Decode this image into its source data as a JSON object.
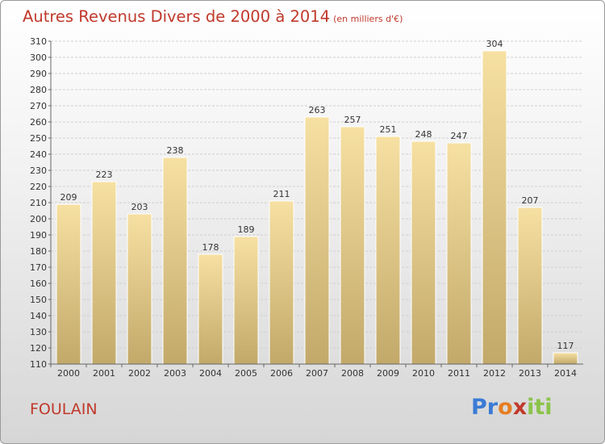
{
  "title": "Autres Revenus Divers de 2000 à 2014",
  "subtitle": "(en milliers d'€)",
  "commune": "FOULAIN",
  "logo": {
    "letters": [
      "P",
      "r",
      "o",
      "x",
      "i",
      "t",
      "i"
    ],
    "colors": [
      "#3a7bd5",
      "#3a7bd5",
      "#e67e22",
      "#c0392b",
      "#8bc34a",
      "#8bc34a",
      "#8bc34a"
    ]
  },
  "colors": {
    "title": "#c0392b",
    "bar_light": "#f4dc9a",
    "bar_dark": "#c8b070",
    "grid": "#cfcfcf"
  },
  "chart_data": {
    "type": "bar",
    "categories": [
      "2000",
      "2001",
      "2002",
      "2003",
      "2004",
      "2005",
      "2006",
      "2007",
      "2008",
      "2009",
      "2010",
      "2011",
      "2012",
      "2013",
      "2014"
    ],
    "values": [
      209,
      223,
      203,
      238,
      178,
      189,
      211,
      263,
      257,
      251,
      248,
      247,
      304,
      207,
      117
    ],
    "ylim": [
      110,
      310
    ],
    "yticks": [
      110,
      120,
      130,
      140,
      150,
      160,
      170,
      180,
      190,
      200,
      210,
      220,
      230,
      240,
      250,
      260,
      270,
      280,
      290,
      300,
      310
    ],
    "grid": true,
    "xlabel": "",
    "ylabel": ""
  }
}
